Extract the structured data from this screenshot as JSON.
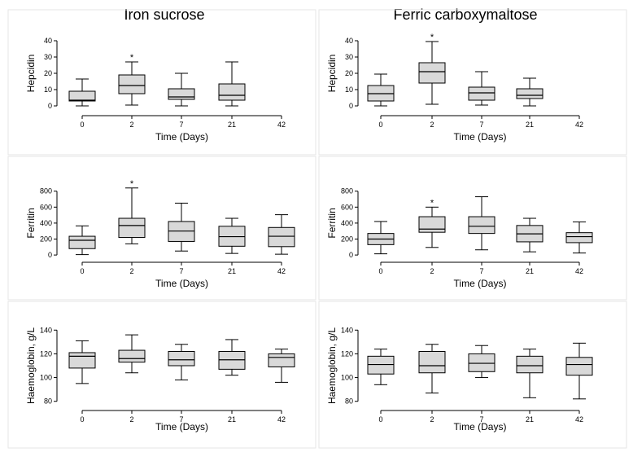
{
  "columns": [
    "Iron sucrose",
    "Ferric carboxymaltose"
  ],
  "chart_data": [
    {
      "type": "box",
      "panel": "iron-sucrose-hepcidin",
      "ylabel": "Hepcidin",
      "xlabel": "Time (Days)",
      "categories": [
        "0",
        "2",
        "7",
        "21",
        "42"
      ],
      "ylim": [
        -4,
        46
      ],
      "yticks": [
        0,
        10,
        20,
        30,
        40
      ],
      "boxes": [
        {
          "min": 0,
          "q1": 3,
          "median": 3.5,
          "q3": 9,
          "max": 16.5,
          "star": false
        },
        {
          "min": 0.5,
          "q1": 7.5,
          "median": 12.5,
          "q3": 19,
          "max": 27,
          "star": true
        },
        {
          "min": 0,
          "q1": 4,
          "median": 5.5,
          "q3": 10.5,
          "max": 20,
          "star": false
        },
        {
          "min": 0,
          "q1": 3.5,
          "median": 6.5,
          "q3": 13.5,
          "max": 27,
          "star": false
        },
        null
      ]
    },
    {
      "type": "box",
      "panel": "ferric-carboxymaltose-hepcidin",
      "ylabel": "Hepcidin",
      "xlabel": "Time (Days)",
      "categories": [
        "0",
        "2",
        "7",
        "21",
        "42"
      ],
      "ylim": [
        -4,
        46
      ],
      "yticks": [
        0,
        10,
        20,
        30,
        40
      ],
      "boxes": [
        {
          "min": 0,
          "q1": 3,
          "median": 7.5,
          "q3": 12.5,
          "max": 19.5,
          "star": false
        },
        {
          "min": 1,
          "q1": 14,
          "median": 21,
          "q3": 26.5,
          "max": 39.5,
          "star": true
        },
        {
          "min": 0.5,
          "q1": 3.5,
          "median": 8,
          "q3": 11.5,
          "max": 21,
          "star": false
        },
        {
          "min": 0,
          "q1": 4.5,
          "median": 6.5,
          "q3": 10.5,
          "max": 17,
          "star": false
        },
        null
      ]
    },
    {
      "type": "box",
      "panel": "iron-sucrose-ferritin",
      "ylabel": "Ferritin",
      "xlabel": "Time (Days)",
      "categories": [
        "0",
        "2",
        "7",
        "21",
        "42"
      ],
      "ylim": [
        -50,
        950
      ],
      "yticks": [
        0,
        200,
        400,
        600,
        800
      ],
      "boxes": [
        {
          "min": 5,
          "q1": 80,
          "median": 185,
          "q3": 235,
          "max": 365,
          "star": false
        },
        {
          "min": 140,
          "q1": 220,
          "median": 370,
          "q3": 460,
          "max": 840,
          "star": true
        },
        {
          "min": 50,
          "q1": 170,
          "median": 300,
          "q3": 420,
          "max": 650,
          "star": false
        },
        {
          "min": 20,
          "q1": 110,
          "median": 230,
          "q3": 360,
          "max": 460,
          "star": false
        },
        {
          "min": 10,
          "q1": 105,
          "median": 235,
          "q3": 345,
          "max": 505,
          "star": false
        }
      ]
    },
    {
      "type": "box",
      "panel": "ferric-carboxymaltose-ferritin",
      "ylabel": "Ferritin",
      "xlabel": "Time (Days)",
      "categories": [
        "0",
        "2",
        "7",
        "21",
        "42"
      ],
      "ylim": [
        -50,
        950
      ],
      "yticks": [
        0,
        200,
        400,
        600,
        800
      ],
      "boxes": [
        {
          "min": 15,
          "q1": 130,
          "median": 200,
          "q3": 270,
          "max": 420,
          "star": false
        },
        {
          "min": 95,
          "q1": 285,
          "median": 325,
          "q3": 480,
          "max": 600,
          "star": true
        },
        {
          "min": 65,
          "q1": 270,
          "median": 360,
          "q3": 480,
          "max": 730,
          "star": false
        },
        {
          "min": 40,
          "q1": 165,
          "median": 265,
          "q3": 370,
          "max": 460,
          "star": false
        },
        {
          "min": 25,
          "q1": 155,
          "median": 230,
          "q3": 280,
          "max": 415,
          "star": false
        }
      ]
    },
    {
      "type": "box",
      "panel": "iron-sucrose-haemoglobin",
      "ylabel": "Haemoglobin, g/L",
      "xlabel": "Time (Days)",
      "categories": [
        "0",
        "2",
        "7",
        "21",
        "42"
      ],
      "ylim": [
        75,
        145
      ],
      "yticks": [
        80,
        100,
        120,
        140
      ],
      "boxes": [
        {
          "min": 95,
          "q1": 108,
          "median": 118,
          "q3": 121,
          "max": 131,
          "star": false
        },
        {
          "min": 104,
          "q1": 113,
          "median": 116,
          "q3": 123,
          "max": 136,
          "star": false
        },
        {
          "min": 98,
          "q1": 110,
          "median": 115,
          "q3": 122,
          "max": 128,
          "star": false
        },
        {
          "min": 102,
          "q1": 107,
          "median": 115,
          "q3": 122,
          "max": 132,
          "star": false
        },
        {
          "min": 96,
          "q1": 109,
          "median": 117,
          "q3": 120,
          "max": 124,
          "star": false
        }
      ]
    },
    {
      "type": "box",
      "panel": "ferric-carboxymaltose-haemoglobin",
      "ylabel": "Haemoglobin, g/L",
      "xlabel": "Time (Days)",
      "categories": [
        "0",
        "2",
        "7",
        "21",
        "42"
      ],
      "ylim": [
        75,
        145
      ],
      "yticks": [
        80,
        100,
        120,
        140
      ],
      "boxes": [
        {
          "min": 94,
          "q1": 103,
          "median": 111,
          "q3": 118,
          "max": 124,
          "star": false
        },
        {
          "min": 87,
          "q1": 104,
          "median": 110,
          "q3": 122,
          "max": 128,
          "star": false
        },
        {
          "min": 100,
          "q1": 105,
          "median": 112,
          "q3": 120,
          "max": 127,
          "star": false
        },
        {
          "min": 83,
          "q1": 104,
          "median": 110,
          "q3": 118,
          "max": 124,
          "star": false
        },
        {
          "min": 82,
          "q1": 102,
          "median": 111,
          "q3": 117,
          "max": 129,
          "star": false
        }
      ]
    }
  ],
  "colors": {
    "box_fill": "#d9d9d9",
    "stroke": "#000000",
    "panel_border": "#e6e6e6"
  }
}
